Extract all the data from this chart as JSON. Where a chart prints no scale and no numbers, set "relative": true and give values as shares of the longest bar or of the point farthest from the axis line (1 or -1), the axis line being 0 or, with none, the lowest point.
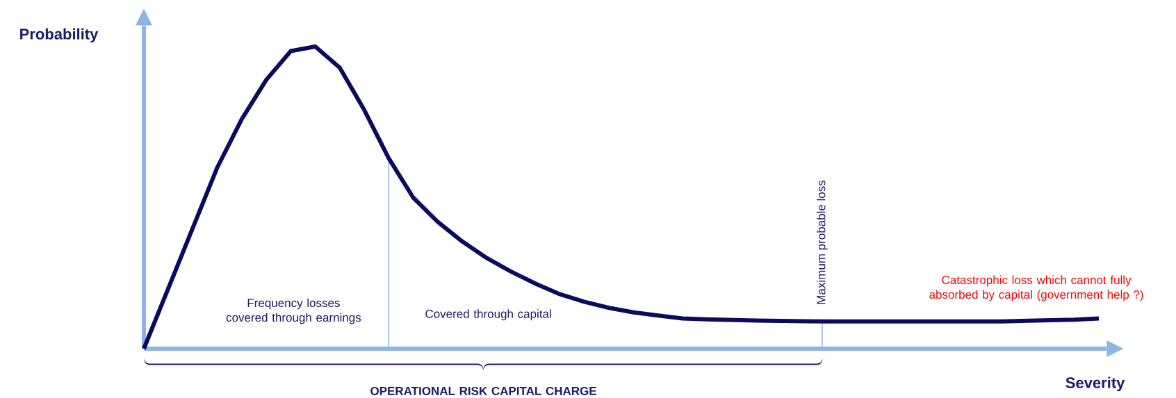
{
  "chart_data": {
    "type": "line",
    "relative": true,
    "xlabel": "Severity",
    "ylabel": "Probability",
    "categories": [
      null,
      null,
      null,
      null,
      null,
      null,
      null,
      null,
      null,
      null,
      null,
      null,
      null,
      null,
      null,
      null,
      null,
      null,
      null,
      null,
      null,
      null,
      null,
      null,
      null,
      null,
      null,
      null,
      null,
      null,
      null,
      null,
      null,
      null,
      null,
      null,
      null,
      null,
      null,
      null
    ],
    "series": [
      {
        "color": "#0b0b5c",
        "values": [
          0,
          0.2,
          0.4,
          0.6,
          0.76,
          0.89,
          0.985,
          1,
          0.93,
          0.79,
          0.63,
          0.5,
          0.42,
          0.355,
          0.3,
          0.255,
          0.215,
          0.18,
          0.155,
          0.135,
          0.12,
          0.11,
          0.1,
          0.097,
          0.095,
          0.093,
          0.092,
          0.091,
          0.09,
          0.09,
          0.09,
          0.09,
          0.09,
          0.09,
          0.09,
          0.09,
          0.092,
          0.094,
          0.096,
          0.1
        ]
      }
    ],
    "annotations": [
      "Frequency losses covered through earnings",
      "Covered through capital",
      "Catastrophic loss which cannot fully absorbed by capital (government help ?)",
      "OPERATIONAL RISK CAPITAL CHARGE",
      "Maximum probable loss"
    ],
    "tick_labels": false,
    "marker": "none",
    "line_style": "solid"
  }
}
